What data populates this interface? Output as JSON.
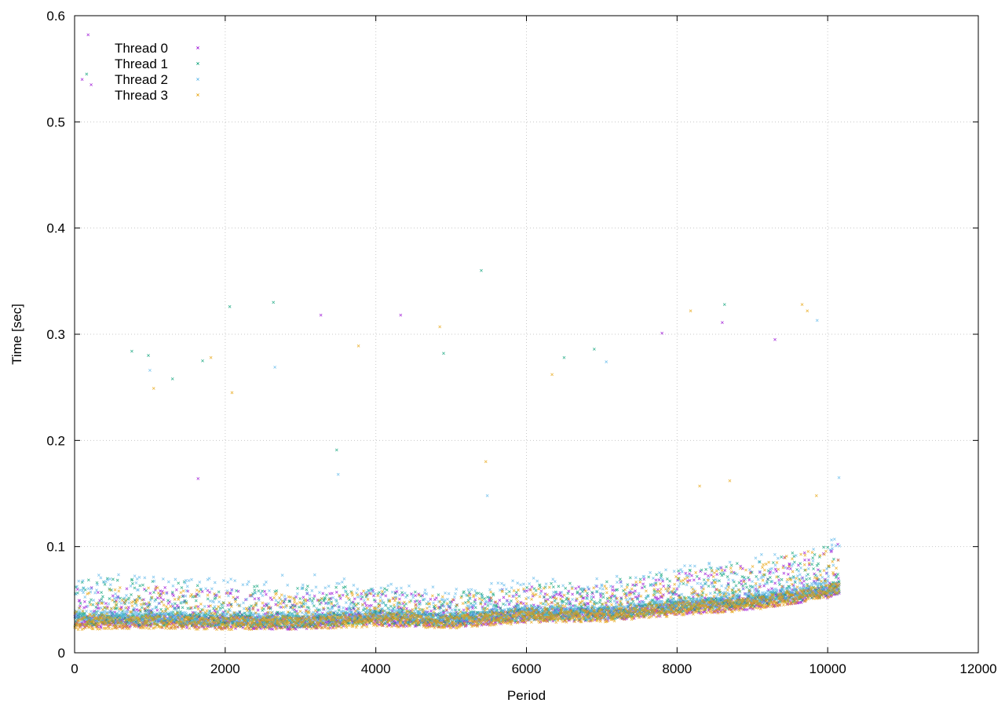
{
  "chart_data": {
    "type": "scatter",
    "title": "",
    "xlabel": "Period",
    "ylabel": "Time [sec]",
    "xlim": [
      0,
      12000
    ],
    "ylim": [
      0,
      0.6
    ],
    "xticks": [
      "0",
      "2000",
      "4000",
      "6000",
      "8000",
      "10000",
      "12000"
    ],
    "yticks": [
      "0",
      "0.1",
      "0.2",
      "0.3",
      "0.4",
      "0.5",
      "0.6"
    ],
    "grid": true,
    "legend_position": "top-left",
    "series": [
      {
        "name": "Thread 0",
        "color": "#9400d3",
        "baseline": [
          [
            0,
            0.027
          ],
          [
            1000,
            0.028
          ],
          [
            2000,
            0.027
          ],
          [
            3000,
            0.026
          ],
          [
            4000,
            0.03
          ],
          [
            5000,
            0.028
          ],
          [
            6000,
            0.033
          ],
          [
            7000,
            0.034
          ],
          [
            8000,
            0.04
          ],
          [
            9000,
            0.045
          ],
          [
            10000,
            0.055
          ],
          [
            10150,
            0.06
          ]
        ],
        "spread": [
          [
            0,
            0.035
          ],
          [
            1000,
            0.035
          ],
          [
            2000,
            0.033
          ],
          [
            3000,
            0.03
          ],
          [
            4000,
            0.03
          ],
          [
            5000,
            0.025
          ],
          [
            6000,
            0.03
          ],
          [
            7000,
            0.03
          ],
          [
            8000,
            0.035
          ],
          [
            9000,
            0.04
          ],
          [
            10000,
            0.045
          ],
          [
            10150,
            0.045
          ]
        ],
        "outliers": [
          [
            100,
            0.54
          ],
          [
            180,
            0.582
          ],
          [
            220,
            0.535
          ],
          [
            1640,
            0.164
          ],
          [
            3270,
            0.318
          ],
          [
            4330,
            0.318
          ],
          [
            7800,
            0.301
          ],
          [
            8600,
            0.311
          ],
          [
            9300,
            0.295
          ]
        ]
      },
      {
        "name": "Thread 1",
        "color": "#009e73",
        "baseline": [
          [
            0,
            0.03
          ],
          [
            1000,
            0.03
          ],
          [
            2000,
            0.029
          ],
          [
            3000,
            0.028
          ],
          [
            4000,
            0.032
          ],
          [
            5000,
            0.029
          ],
          [
            6000,
            0.035
          ],
          [
            7000,
            0.035
          ],
          [
            8000,
            0.042
          ],
          [
            9000,
            0.047
          ],
          [
            10000,
            0.057
          ],
          [
            10150,
            0.06
          ]
        ],
        "spread": [
          [
            0,
            0.04
          ],
          [
            1000,
            0.04
          ],
          [
            2000,
            0.035
          ],
          [
            3000,
            0.035
          ],
          [
            4000,
            0.03
          ],
          [
            5000,
            0.028
          ],
          [
            6000,
            0.03
          ],
          [
            7000,
            0.032
          ],
          [
            8000,
            0.035
          ],
          [
            9000,
            0.04
          ],
          [
            10000,
            0.045
          ],
          [
            10150,
            0.045
          ]
        ],
        "outliers": [
          [
            160,
            0.545
          ],
          [
            760,
            0.284
          ],
          [
            980,
            0.28
          ],
          [
            1300,
            0.258
          ],
          [
            1700,
            0.275
          ],
          [
            2060,
            0.326
          ],
          [
            2640,
            0.33
          ],
          [
            3480,
            0.191
          ],
          [
            4900,
            0.282
          ],
          [
            5400,
            0.36
          ],
          [
            6500,
            0.278
          ],
          [
            6900,
            0.286
          ],
          [
            8630,
            0.328
          ]
        ]
      },
      {
        "name": "Thread 2",
        "color": "#56b4e9",
        "baseline": [
          [
            0,
            0.032
          ],
          [
            1000,
            0.031
          ],
          [
            2000,
            0.03
          ],
          [
            3000,
            0.03
          ],
          [
            4000,
            0.033
          ],
          [
            5000,
            0.03
          ],
          [
            6000,
            0.036
          ],
          [
            7000,
            0.036
          ],
          [
            8000,
            0.043
          ],
          [
            9000,
            0.049
          ],
          [
            10000,
            0.06
          ],
          [
            10150,
            0.06
          ]
        ],
        "spread": [
          [
            0,
            0.045
          ],
          [
            1000,
            0.042
          ],
          [
            2000,
            0.04
          ],
          [
            3000,
            0.045
          ],
          [
            4000,
            0.035
          ],
          [
            5000,
            0.03
          ],
          [
            6000,
            0.035
          ],
          [
            7000,
            0.035
          ],
          [
            8000,
            0.038
          ],
          [
            9000,
            0.042
          ],
          [
            10000,
            0.048
          ],
          [
            10150,
            0.048
          ]
        ],
        "outliers": [
          [
            1000,
            0.266
          ],
          [
            2660,
            0.269
          ],
          [
            3500,
            0.168
          ],
          [
            5480,
            0.148
          ],
          [
            7060,
            0.274
          ],
          [
            9860,
            0.313
          ],
          [
            10150,
            0.165
          ]
        ]
      },
      {
        "name": "Thread 3",
        "color": "#e69f00",
        "baseline": [
          [
            0,
            0.026
          ],
          [
            1000,
            0.027
          ],
          [
            2000,
            0.026
          ],
          [
            3000,
            0.026
          ],
          [
            4000,
            0.029
          ],
          [
            5000,
            0.027
          ],
          [
            6000,
            0.032
          ],
          [
            7000,
            0.033
          ],
          [
            8000,
            0.039
          ],
          [
            9000,
            0.044
          ],
          [
            10000,
            0.056
          ],
          [
            10150,
            0.06
          ]
        ],
        "spread": [
          [
            0,
            0.035
          ],
          [
            1000,
            0.035
          ],
          [
            2000,
            0.033
          ],
          [
            3000,
            0.03
          ],
          [
            4000,
            0.03
          ],
          [
            5000,
            0.025
          ],
          [
            6000,
            0.03
          ],
          [
            7000,
            0.03
          ],
          [
            8000,
            0.035
          ],
          [
            9000,
            0.04
          ],
          [
            10000,
            0.045
          ],
          [
            10150,
            0.045
          ]
        ],
        "outliers": [
          [
            1050,
            0.249
          ],
          [
            1810,
            0.278
          ],
          [
            2090,
            0.245
          ],
          [
            3770,
            0.289
          ],
          [
            4850,
            0.307
          ],
          [
            5460,
            0.18
          ],
          [
            6340,
            0.262
          ],
          [
            8180,
            0.322
          ],
          [
            8300,
            0.157
          ],
          [
            8700,
            0.162
          ],
          [
            9660,
            0.328
          ],
          [
            9730,
            0.322
          ],
          [
            9850,
            0.148
          ]
        ]
      }
    ]
  }
}
